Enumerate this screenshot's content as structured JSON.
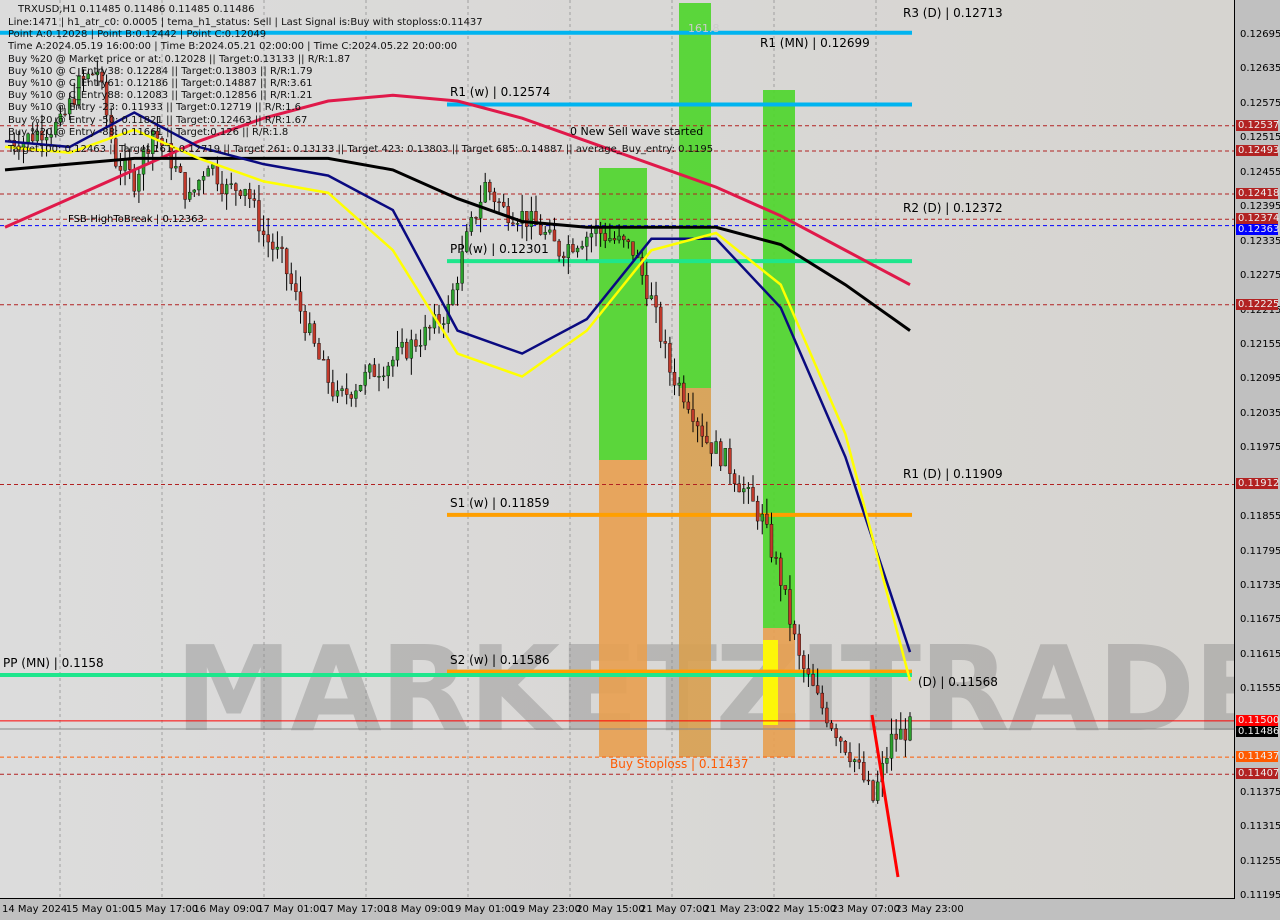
{
  "header": {
    "symbol_line": "TRXUSD,H1  0.11485 0.11486 0.11485 0.11486",
    "info_lines": [
      "Line:1471 | h1_atr_c0: 0.0005 | tema_h1_status: Sell | Last Signal is:Buy with stoploss:0.11437",
      "Point A:0.12028 | Point B:0.12442 | Point C:0.12049",
      "Time A:2024.05.19 16:00:00 | Time B:2024.05.21 02:00:00 | Time C:2024.05.22 20:00:00",
      "Buy %20 @ Market price or at: 0.12028 || Target:0.13133 || R/R:1.87",
      "Buy %10 @ C_Entry38: 0.12284 || Target:0.13803 || R/R:1.79",
      "Buy %10 @ C_Entry61: 0.12186 || Target:0.14887 || R/R:3.61",
      "Buy %10 @ C_Entry88: 0.12083 || Target:0.12856 || R/R:1.21",
      "Buy %10 @ Entry -23: 0.11933 || Target:0.12719 || R/R:1.6",
      "Buy %20 @ Entry -50: 0.11821 || Target:0.12463 || R/R:1.67",
      "Buy %20 @ Entry -88: 0.11661 || Target:0.126 || R/R:1.8",
      "Target100: 0.12463 || Target 161: 0.12719 || Target 261: 0.13133 || Target 423: 0.13803 || Target 685: 0.14887 || average_Buy_entry: 0.1195"
    ]
  },
  "annotations": {
    "new_sell": "0 New Sell wave started",
    "stoploss": "Buy Stoploss | 0.11437",
    "fsb": "FSB-HighToBreak | 0.12363",
    "fib": "161.8",
    "watermark": "MARKETZITRADE"
  },
  "chart_data": {
    "type": "candlestick",
    "title": "TRXUSD,H1",
    "ylim": [
      0.11195,
      0.12713
    ],
    "y_ticks": [
      "0.12695",
      "0.12635",
      "0.12575",
      "0.12515",
      "0.12455",
      "0.12395",
      "0.12335",
      "0.12275",
      "0.12215",
      "0.12155",
      "0.12095",
      "0.12035",
      "0.11975",
      "0.11855",
      "0.11795",
      "0.11735",
      "0.11675",
      "0.11615",
      "0.11555",
      "0.11375",
      "0.11315",
      "0.11255",
      "0.11195"
    ],
    "x_ticks": [
      "14 May 2024",
      "15 May 01:00",
      "15 May 17:00",
      "16 May 09:00",
      "17 May 01:00",
      "17 May 17:00",
      "18 May 09:00",
      "19 May 01:00",
      "19 May 23:00",
      "20 May 15:00",
      "21 May 07:00",
      "21 May 23:00",
      "22 May 15:00",
      "23 May 07:00",
      "23 May 23:00"
    ],
    "close_path": [
      0.12512,
      0.12512,
      0.1253,
      0.12538,
      0.12608,
      0.12634,
      0.12477,
      0.12442,
      0.1253,
      0.12477,
      0.12408,
      0.12477,
      0.12425,
      0.12434,
      0.12347,
      0.12303,
      0.12216,
      0.12129,
      0.12059,
      0.12085,
      0.12111,
      0.12129,
      0.12155,
      0.12181,
      0.12216,
      0.12338,
      0.12434,
      0.1239,
      0.12381,
      0.12355,
      0.1232,
      0.12338,
      0.12355,
      0.12338,
      0.1232,
      0.12233,
      0.12111,
      0.12059,
      0.11989,
      0.11955,
      0.11902,
      0.1185,
      0.11746,
      0.11606,
      0.11537,
      0.11484,
      0.11432,
      0.11362,
      0.11467,
      0.11488
    ],
    "series": [
      {
        "color": "#e0194a",
        "values": [
          0.1236,
          0.1241,
          0.1246,
          0.1251,
          0.1255,
          0.1258,
          0.1259,
          0.1258,
          0.1255,
          0.1251,
          0.1247,
          0.1243,
          0.1238,
          0.1232,
          0.1226
        ]
      },
      {
        "color": "#000000",
        "values": [
          0.1246,
          0.1247,
          0.1248,
          0.1248,
          0.1248,
          0.1248,
          0.1246,
          0.1241,
          0.1237,
          0.1236,
          0.1236,
          0.1236,
          0.1233,
          0.1226,
          0.1218
        ]
      },
      {
        "color": "#0a0a80",
        "values": [
          0.1251,
          0.125,
          0.1256,
          0.125,
          0.1247,
          0.1245,
          0.1239,
          0.1218,
          0.1214,
          0.122,
          0.1234,
          0.1234,
          0.1222,
          0.1196,
          0.1162
        ]
      },
      {
        "color": "#ffff00",
        "values": [
          0.125,
          0.1249,
          0.1253,
          0.1248,
          0.1244,
          0.1242,
          0.1232,
          0.1214,
          0.121,
          0.1218,
          0.1232,
          0.1235,
          0.1226,
          0.12,
          0.1157
        ]
      }
    ],
    "levels": [
      {
        "label": "R1 (MN) | 0.12699",
        "value": 0.12699,
        "color": "#00b4f0",
        "full": true
      },
      {
        "label": "R3 (D) | 0.12713",
        "value": 0.12713,
        "color": "#00b4f0",
        "full": false
      },
      {
        "label": "R1 (w) | 0.12574",
        "value": 0.12574,
        "color": "#00b4f0",
        "full": false
      },
      {
        "label": "R2 (D) | 0.12372",
        "value": 0.12372,
        "color": "#00b4f0",
        "full": false
      },
      {
        "label": "PP (w) | 0.12301",
        "value": 0.12301,
        "color": "#1ee68c",
        "full": false
      },
      {
        "label": "R1 (D) | 0.11909",
        "value": 0.11909,
        "color": "#00b4f0",
        "full": false
      },
      {
        "label": "S1 (w) | 0.11859",
        "value": 0.11859,
        "color": "#ff9f00",
        "full": false
      },
      {
        "label": "S2 (w) | 0.11586",
        "value": 0.11586,
        "color": "#ff9f00",
        "full": false
      },
      {
        "label": "PP (MN) | 0.1158",
        "value": 0.1158,
        "color": "#1ee68c",
        "full": true
      },
      {
        "label": "(D) | 0.11568",
        "value": 0.11568,
        "color": "#00b4f0",
        "full": false
      }
    ],
    "price_tags": [
      {
        "value": "0.12537",
        "color": "#b22222"
      },
      {
        "value": "0.12493",
        "color": "#b22222"
      },
      {
        "value": "0.12418",
        "color": "#b22222"
      },
      {
        "value": "0.12374",
        "color": "#b22222"
      },
      {
        "value": "0.12363",
        "color": "#0000ff"
      },
      {
        "value": "0.12225",
        "color": "#b22222"
      },
      {
        "value": "0.11912",
        "color": "#b22222"
      },
      {
        "value": "0.11500",
        "color": "#ff0000"
      },
      {
        "value": "0.11486",
        "color": "#000000"
      },
      {
        "value": "0.11437",
        "color": "#ff5a00"
      },
      {
        "value": "0.11407",
        "color": "#b22222"
      }
    ]
  }
}
